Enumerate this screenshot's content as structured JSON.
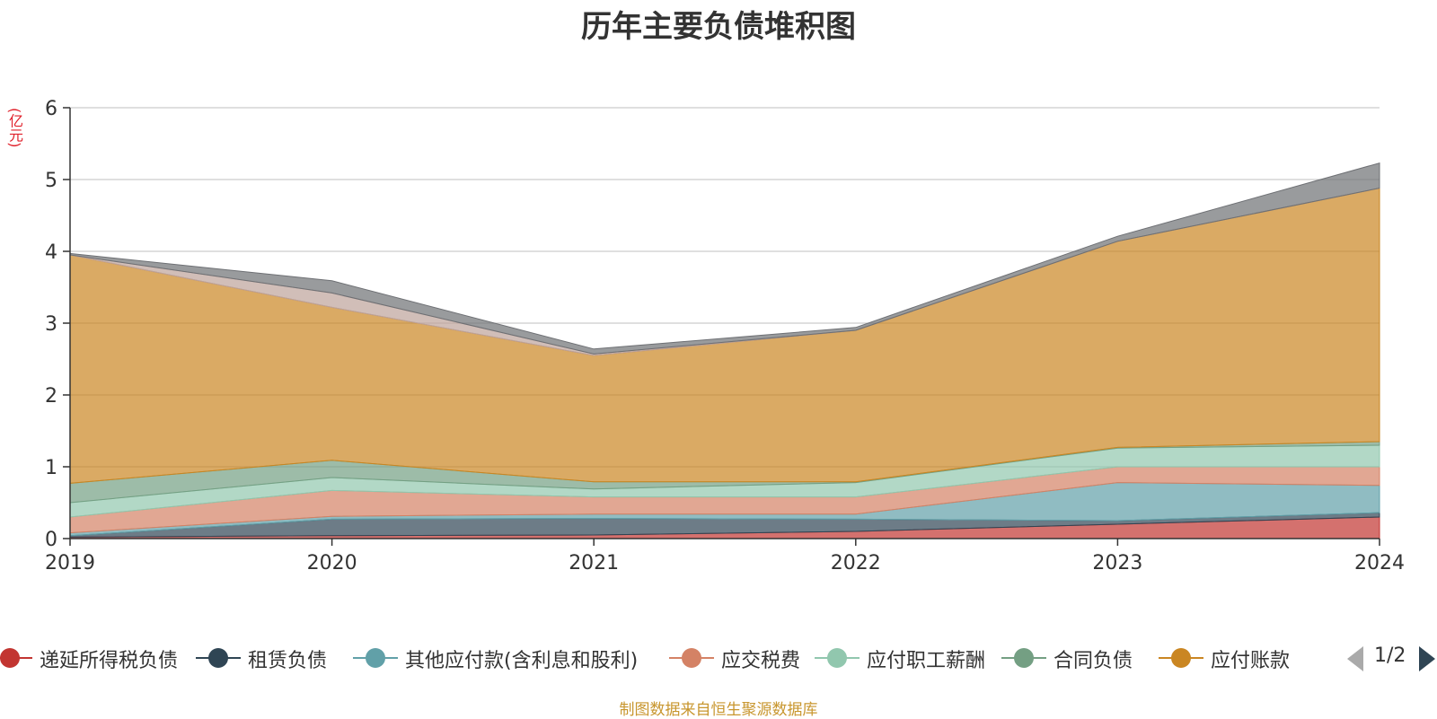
{
  "chart_data": {
    "type": "area",
    "stacked": true,
    "title": "历年主要负债堆积图",
    "unit_label": "(亿元)",
    "x": [
      "2019",
      "2020",
      "2021",
      "2022",
      "2023",
      "2024"
    ],
    "ylim": [
      0,
      6
    ],
    "yticks": [
      "0",
      "1",
      "2",
      "3",
      "4",
      "5",
      "6"
    ],
    "grid": true,
    "series": [
      {
        "name": "递延所得税负债",
        "color": "#c23531",
        "values": [
          0.02,
          0.04,
          0.05,
          0.1,
          0.2,
          0.3
        ]
      },
      {
        "name": "租赁负债",
        "color": "#2f4554",
        "values": [
          0.02,
          0.23,
          0.23,
          0.17,
          0.05,
          0.06
        ]
      },
      {
        "name": "其他应付款(含利息和股利)",
        "color": "#61a0a8",
        "values": [
          0.04,
          0.04,
          0.06,
          0.07,
          0.53,
          0.38
        ]
      },
      {
        "name": "应交税费",
        "color": "#d48265",
        "values": [
          0.22,
          0.36,
          0.24,
          0.24,
          0.22,
          0.26
        ]
      },
      {
        "name": "应付职工薪酬",
        "color": "#91c7ae",
        "values": [
          0.2,
          0.18,
          0.11,
          0.2,
          0.26,
          0.3
        ]
      },
      {
        "name": "合同负债",
        "color": "#749f83",
        "values": [
          0.27,
          0.24,
          0.1,
          0.01,
          0.01,
          0.05
        ]
      },
      {
        "name": "应付账款",
        "color": "#ca8622",
        "values": [
          3.18,
          2.13,
          1.76,
          2.11,
          2.87,
          3.53
        ]
      },
      {
        "name": "",
        "color": "#bda29a",
        "values": [
          0.0,
          0.2,
          0.02,
          0.0,
          0.0,
          0.0
        ]
      },
      {
        "name": "",
        "color": "#6e7074",
        "values": [
          0.02,
          0.17,
          0.07,
          0.04,
          0.07,
          0.35
        ]
      }
    ],
    "legend_position": "bottom",
    "legend_page": "1/2"
  },
  "source_note": "制图数据来自恒生聚源数据库"
}
